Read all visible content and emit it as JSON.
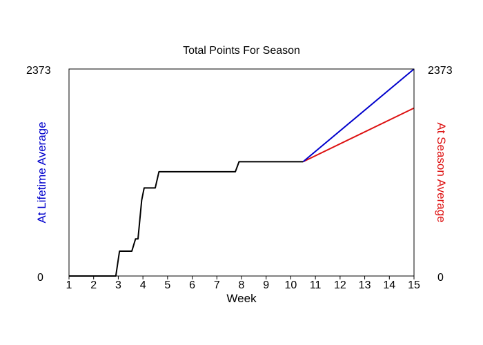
{
  "chart_data": {
    "type": "line",
    "title": "Total Points For Season",
    "xlabel": "Week",
    "ylabel_left": "At Lifetime Average",
    "ylabel_right": "At Season Average",
    "xlim": [
      1,
      15
    ],
    "ylim": [
      0,
      2373
    ],
    "x_ticks": [
      "1",
      "2",
      "3",
      "4",
      "5",
      "6",
      "7",
      "8",
      "9",
      "10",
      "11",
      "12",
      "13",
      "14",
      "15"
    ],
    "y_ticks_left": [
      "0",
      "2373"
    ],
    "y_ticks_right": [
      "0",
      "2373"
    ],
    "grid": false,
    "colors": {
      "actual": "#000000",
      "lifetime": "#0000cc",
      "season": "#dd1111",
      "left_label": "#0000cc",
      "right_label": "#dd1111"
    },
    "series": [
      {
        "key": "actual",
        "points": [
          [
            1,
            0
          ],
          [
            2.9,
            0
          ],
          [
            3.05,
            285
          ],
          [
            3.55,
            285
          ],
          [
            3.7,
            425
          ],
          [
            3.8,
            425
          ],
          [
            3.95,
            870
          ],
          [
            4.05,
            1010
          ],
          [
            4.5,
            1010
          ],
          [
            4.65,
            1195
          ],
          [
            7.75,
            1195
          ],
          [
            7.9,
            1310
          ],
          [
            10.5,
            1310
          ]
        ]
      },
      {
        "key": "lifetime",
        "points": [
          [
            10.5,
            1310
          ],
          [
            15,
            2373
          ]
        ]
      },
      {
        "key": "season",
        "points": [
          [
            10.5,
            1310
          ],
          [
            15,
            1925
          ]
        ]
      }
    ]
  }
}
